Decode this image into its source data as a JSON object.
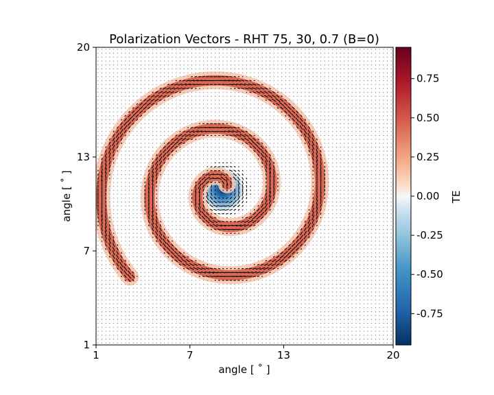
{
  "chart_data": {
    "type": "heatmap",
    "title": "Polarization Vectors - RHT 75, 30, 0.7 (B=0)",
    "xlabel": "angle [$^\\circ$]",
    "ylabel": "angle [$^\\circ$]",
    "xlim": [
      1,
      20
    ],
    "ylim": [
      1,
      20
    ],
    "xticks": [
      "1",
      "7",
      "13",
      "20"
    ],
    "yticks": [
      "1",
      "7",
      "13",
      "20"
    ],
    "colorbar": {
      "label": "TE",
      "colormap": "RdBu_r",
      "range": [
        -0.95,
        0.95
      ],
      "ticks": [
        "-0.75",
        "-0.50",
        "-0.25",
        "0.00",
        "0.25",
        "0.50",
        "0.75"
      ],
      "tick_values": [
        -0.75,
        -0.5,
        -0.25,
        0.0,
        0.25,
        0.5,
        0.75
      ]
    },
    "spiral": {
      "center": [
        9.1,
        10.9
      ],
      "start_angle_deg": 0,
      "growth_deg_per_turn": 3.1,
      "turns": 2.62,
      "band_te_value": 0.55,
      "center_te_value": -0.95
    },
    "quiver": {
      "grid_spacing_deg": 0.25
    },
    "colors": {
      "positive": "#d65f4a",
      "negative": "#134b87",
      "vector": "#000000",
      "grid_dot": "#5a5a5a"
    }
  },
  "labels": {
    "title": "Polarization Vectors - RHT 75, 30, 0.7 (B=0)",
    "xlabel": "angle [ ˚ ]",
    "ylabel": "angle [ ˚ ]",
    "colorbar_label": "TE"
  }
}
